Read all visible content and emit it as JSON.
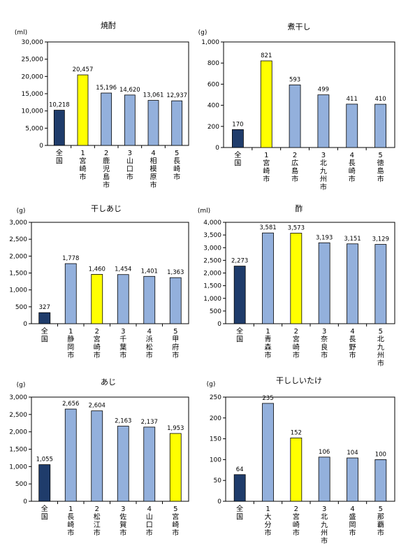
{
  "chart_data": [
    {
      "type": "bar",
      "title": "焼酎",
      "unit": "(ml)",
      "ylim": [
        0,
        30000
      ],
      "yticks": [
        0,
        5000,
        10000,
        15000,
        20000,
        25000,
        30000
      ],
      "ytick_labels": [
        "0",
        "5,000",
        "10,000",
        "15,000",
        "20,000",
        "25,000",
        "30,000"
      ],
      "categories": [
        "全国",
        "1宮崎市",
        "2鹿児島市",
        "3山口市",
        "4相模原市",
        "5長崎市"
      ],
      "x_labels": [
        [
          "全",
          "国"
        ],
        [
          "1",
          "宮",
          "崎",
          "市"
        ],
        [
          "2",
          "鹿",
          "児",
          "島",
          "市"
        ],
        [
          "3",
          "山",
          "口",
          "市"
        ],
        [
          "4",
          "相",
          "模",
          "原",
          "市"
        ],
        [
          "5",
          "長",
          "崎",
          "市"
        ]
      ],
      "values": [
        10218,
        20457,
        15196,
        14620,
        13061,
        12937
      ],
      "value_labels": [
        "10,218",
        "20,457",
        "15,196",
        "14,620",
        "13,061",
        "12,937"
      ],
      "bar_colors": [
        "#1f3c6b",
        "#ffff00",
        "#93b0dc",
        "#93b0dc",
        "#93b0dc",
        "#93b0dc"
      ]
    },
    {
      "type": "bar",
      "title": "煮干し",
      "unit": "(g)",
      "ylim": [
        0,
        1000
      ],
      "yticks": [
        0,
        200,
        400,
        600,
        800,
        1000
      ],
      "ytick_labels": [
        "0",
        "200",
        "400",
        "600",
        "800",
        "1,000"
      ],
      "categories": [
        "全国",
        "1宮崎市",
        "2広島市",
        "3北九州市",
        "4長崎市",
        "5徳島市"
      ],
      "x_labels": [
        [
          "全",
          "国"
        ],
        [
          "1",
          "宮",
          "崎",
          "市"
        ],
        [
          "2",
          "広",
          "島",
          "市"
        ],
        [
          "3",
          "北",
          "九",
          "州",
          "市"
        ],
        [
          "4",
          "長",
          "崎",
          "市"
        ],
        [
          "5",
          "徳",
          "島",
          "市"
        ]
      ],
      "values": [
        170,
        821,
        593,
        499,
        411,
        410
      ],
      "value_labels": [
        "170",
        "821",
        "593",
        "499",
        "411",
        "410"
      ],
      "bar_colors": [
        "#1f3c6b",
        "#ffff00",
        "#93b0dc",
        "#93b0dc",
        "#93b0dc",
        "#93b0dc"
      ]
    },
    {
      "type": "bar",
      "title": "干しあじ",
      "unit": "(g)",
      "ylim": [
        0,
        3000
      ],
      "yticks": [
        0,
        500,
        1000,
        1500,
        2000,
        2500,
        3000
      ],
      "ytick_labels": [
        "0",
        "500",
        "1,000",
        "1,500",
        "2,000",
        "2,500",
        "3,000"
      ],
      "categories": [
        "全国",
        "1静岡市",
        "2宮崎市",
        "3千葉市",
        "4浜松市",
        "5甲府市"
      ],
      "x_labels": [
        [
          "全",
          "国"
        ],
        [
          "1",
          "静",
          "岡",
          "市"
        ],
        [
          "2",
          "宮",
          "崎",
          "市"
        ],
        [
          "3",
          "千",
          "葉",
          "市"
        ],
        [
          "4",
          "浜",
          "松",
          "市"
        ],
        [
          "5",
          "甲",
          "府",
          "市"
        ]
      ],
      "values": [
        327,
        1778,
        1460,
        1454,
        1401,
        1363
      ],
      "value_labels": [
        "327",
        "1,778",
        "1,460",
        "1,454",
        "1,401",
        "1,363"
      ],
      "bar_colors": [
        "#1f3c6b",
        "#93b0dc",
        "#ffff00",
        "#93b0dc",
        "#93b0dc",
        "#93b0dc"
      ]
    },
    {
      "type": "bar",
      "title": "酢",
      "unit": "(ml)",
      "ylim": [
        0,
        4000
      ],
      "yticks": [
        0,
        500,
        1000,
        1500,
        2000,
        2500,
        3000,
        3500,
        4000
      ],
      "ytick_labels": [
        "0",
        "500",
        "1,000",
        "1,500",
        "2,000",
        "2,500",
        "3,000",
        "3,500",
        "4,000"
      ],
      "categories": [
        "全国",
        "1青森市",
        "2宮崎市",
        "3奈良市",
        "4長野市",
        "5北九州市"
      ],
      "x_labels": [
        [
          "全",
          "国"
        ],
        [
          "1",
          "青",
          "森",
          "市"
        ],
        [
          "2",
          "宮",
          "崎",
          "市"
        ],
        [
          "3",
          "奈",
          "良",
          "市"
        ],
        [
          "4",
          "長",
          "野",
          "市"
        ],
        [
          "5",
          "北",
          "九",
          "州",
          "市"
        ]
      ],
      "values": [
        2273,
        3581,
        3573,
        3193,
        3151,
        3129
      ],
      "value_labels": [
        "2,273",
        "3,581",
        "3,573",
        "3,193",
        "3,151",
        "3,129"
      ],
      "bar_colors": [
        "#1f3c6b",
        "#93b0dc",
        "#ffff00",
        "#93b0dc",
        "#93b0dc",
        "#93b0dc"
      ]
    },
    {
      "type": "bar",
      "title": "あじ",
      "unit": "(g)",
      "ylim": [
        0,
        3000
      ],
      "yticks": [
        0,
        500,
        1000,
        1500,
        2000,
        2500,
        3000
      ],
      "ytick_labels": [
        "0",
        "500",
        "1,000",
        "1,500",
        "2,000",
        "2,500",
        "3,000"
      ],
      "categories": [
        "全国",
        "1長崎市",
        "2松江市",
        "3佐賀市",
        "4山口市",
        "5宮崎市"
      ],
      "x_labels": [
        [
          "全",
          "国"
        ],
        [
          "1",
          "長",
          "崎",
          "市"
        ],
        [
          "2",
          "松",
          "江",
          "市"
        ],
        [
          "3",
          "佐",
          "賀",
          "市"
        ],
        [
          "4",
          "山",
          "口",
          "市"
        ],
        [
          "5",
          "宮",
          "崎",
          "市"
        ]
      ],
      "values": [
        1055,
        2656,
        2604,
        2163,
        2137,
        1953
      ],
      "value_labels": [
        "1,055",
        "2,656",
        "2,604",
        "2,163",
        "2,137",
        "1,953"
      ],
      "bar_colors": [
        "#1f3c6b",
        "#93b0dc",
        "#93b0dc",
        "#93b0dc",
        "#93b0dc",
        "#ffff00"
      ]
    },
    {
      "type": "bar",
      "title": "干ししいたけ",
      "unit": "(g)",
      "ylim": [
        0,
        250
      ],
      "yticks": [
        0,
        50,
        100,
        150,
        200,
        250
      ],
      "ytick_labels": [
        "0",
        "50",
        "100",
        "150",
        "200",
        "250"
      ],
      "categories": [
        "全国",
        "1大分市",
        "2宮崎市",
        "3北九州市",
        "4盛岡市",
        "5那覇市"
      ],
      "x_labels": [
        [
          "全",
          "国"
        ],
        [
          "1",
          "大",
          "分",
          "市"
        ],
        [
          "2",
          "宮",
          "崎",
          "市"
        ],
        [
          "3",
          "北",
          "九",
          "州",
          "市"
        ],
        [
          "4",
          "盛",
          "岡",
          "市"
        ],
        [
          "5",
          "那",
          "覇",
          "市"
        ]
      ],
      "values": [
        64,
        235,
        152,
        106,
        104,
        100
      ],
      "value_labels": [
        "64",
        "235",
        "152",
        "106",
        "104",
        "100"
      ],
      "bar_colors": [
        "#1f3c6b",
        "#93b0dc",
        "#ffff00",
        "#93b0dc",
        "#93b0dc",
        "#93b0dc"
      ]
    }
  ]
}
